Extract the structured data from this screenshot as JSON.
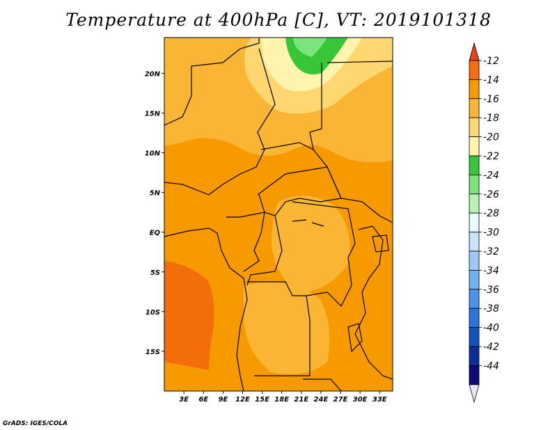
{
  "title": "Temperature at 400hPa [C], VT: 2019101318",
  "credit": "GrADS: IGES/COLA",
  "map": {
    "lon_range": [
      0,
      35
    ],
    "lat_range": [
      -20,
      24.5
    ],
    "x_ticks": [
      3,
      6,
      9,
      12,
      15,
      18,
      21,
      24,
      27,
      30,
      33
    ],
    "x_tick_labels": [
      "3E",
      "6E",
      "9E",
      "12E",
      "15E",
      "18E",
      "21E",
      "24E",
      "27E",
      "30E",
      "33E"
    ],
    "y_ticks": [
      20,
      15,
      10,
      5,
      0,
      -5,
      -10,
      -15
    ],
    "y_tick_labels": [
      "20N",
      "15N",
      "10N",
      "5N",
      "EQ",
      "5S",
      "10S",
      "15S"
    ]
  },
  "colorbar": {
    "levels": [
      "-12",
      "-14",
      "-16",
      "-18",
      "-20",
      "-22",
      "-24",
      "-26",
      "-28",
      "-30",
      "-32",
      "-34",
      "-36",
      "-38",
      "-40",
      "-42",
      "-44"
    ],
    "colors": [
      "#e8411e",
      "#f36d0a",
      "#f79a00",
      "#fbb535",
      "#ffd770",
      "#fff4ad",
      "#37c637",
      "#7be47b",
      "#b8f3b0",
      "#e6fbfb",
      "#c6e4fb",
      "#9cc9f7",
      "#70aff0",
      "#4c94ea",
      "#2a74dd",
      "#1452c2",
      "#0a2f9a",
      "#0a0a78",
      "#e6e6f8"
    ]
  },
  "fields": {
    "hot_zone": "-14",
    "main": "-16",
    "mid": "-18",
    "cool": "-20",
    "cold": "-22",
    "green": "-24"
  }
}
